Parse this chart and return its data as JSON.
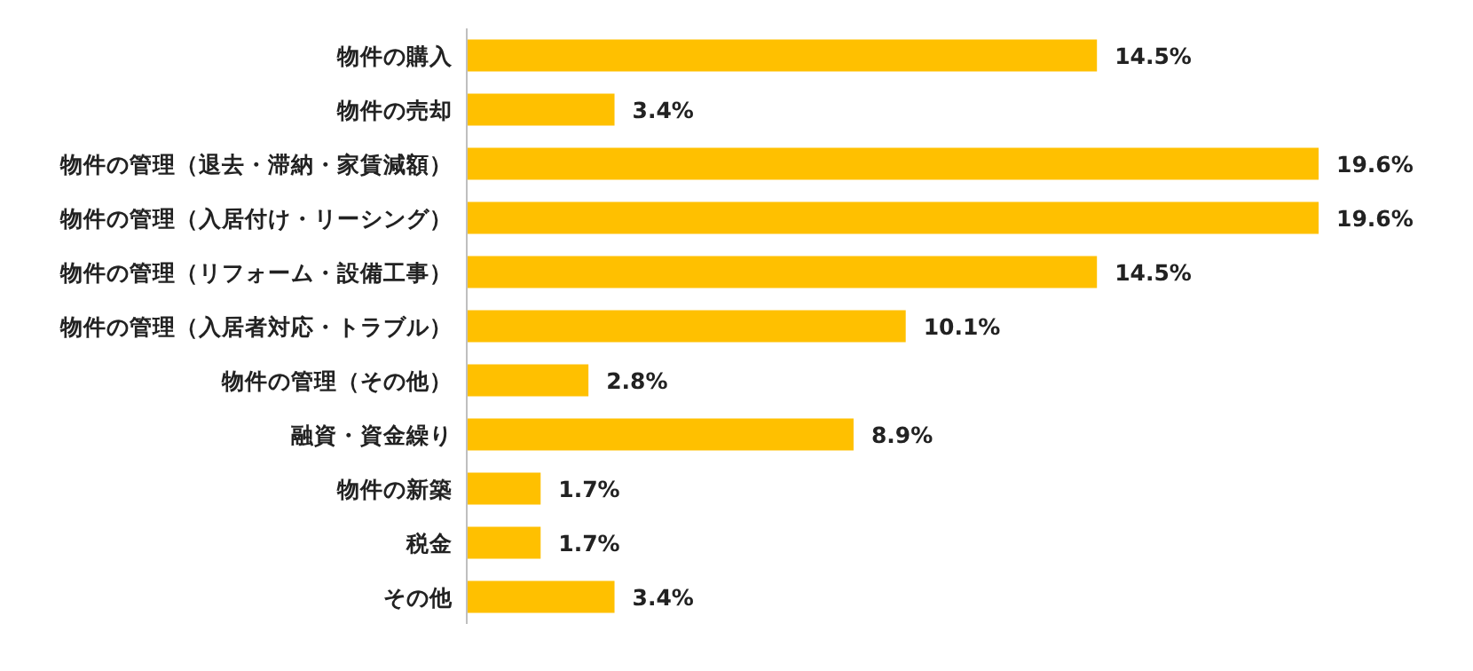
{
  "chart_data": {
    "type": "bar",
    "orientation": "horizontal",
    "color": "#ffc000",
    "categories": [
      "物件の購入",
      "物件の売却",
      "物件の管理（退去・滞納・家賃減額）",
      "物件の管理（入居付け・リーシング）",
      "物件の管理（リフォーム・設備工事）",
      "物件の管理（入居者対応・トラブル）",
      "物件の管理（その他）",
      "融資・資金繰り",
      "物件の新築",
      "税金",
      "その他"
    ],
    "values": [
      14.5,
      3.4,
      19.6,
      19.6,
      14.5,
      10.1,
      2.8,
      8.9,
      1.7,
      1.7,
      3.4
    ],
    "value_labels": [
      "14.5%",
      "3.4%",
      "19.6%",
      "19.6%",
      "14.5%",
      "10.1%",
      "2.8%",
      "8.9%",
      "1.7%",
      "1.7%",
      "3.4%"
    ]
  }
}
